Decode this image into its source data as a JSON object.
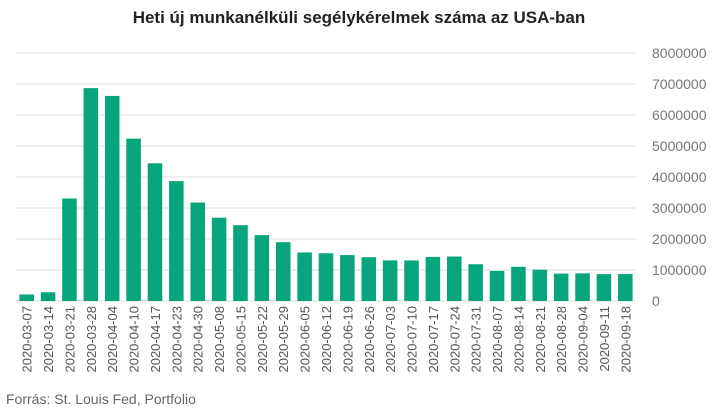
{
  "chart_data": {
    "type": "bar",
    "title": "Heti új munkanélküli segélykérelmek száma az USA-ban",
    "source": "Forrás: St. Louis Fed, Portfolio",
    "categories": [
      "2020-03-07",
      "2020-03-14",
      "2020-03-21",
      "2020-03-28",
      "2020-04-04",
      "2020-04-10",
      "2020-04-17",
      "2020-04-23",
      "2020-04-30",
      "2020-05-08",
      "2020-05-15",
      "2020-05-22",
      "2020-05-29",
      "2020-06-05",
      "2020-06-12",
      "2020-06-19",
      "2020-06-26",
      "2020-07-03",
      "2020-07-10",
      "2020-07-17",
      "2020-07-24",
      "2020-07-31",
      "2020-08-07",
      "2020-08-14",
      "2020-08-21",
      "2020-08-28",
      "2020-09-04",
      "2020-09-11",
      "2020-09-18"
    ],
    "values": [
      211000,
      282000,
      3307000,
      6867000,
      6615000,
      5237000,
      4442000,
      3867000,
      3176000,
      2687000,
      2446000,
      2126000,
      1897000,
      1566000,
      1540000,
      1482000,
      1413000,
      1310000,
      1307000,
      1422000,
      1435000,
      1186000,
      971000,
      1104000,
      1011000,
      884000,
      893000,
      866000,
      870000
    ],
    "ylim": [
      0,
      8000000
    ],
    "yticks": [
      "0",
      "1000000",
      "2000000",
      "3000000",
      "4000000",
      "5000000",
      "6000000",
      "7000000",
      "8000000"
    ],
    "grid": true,
    "bar_color": "#07a57c"
  }
}
